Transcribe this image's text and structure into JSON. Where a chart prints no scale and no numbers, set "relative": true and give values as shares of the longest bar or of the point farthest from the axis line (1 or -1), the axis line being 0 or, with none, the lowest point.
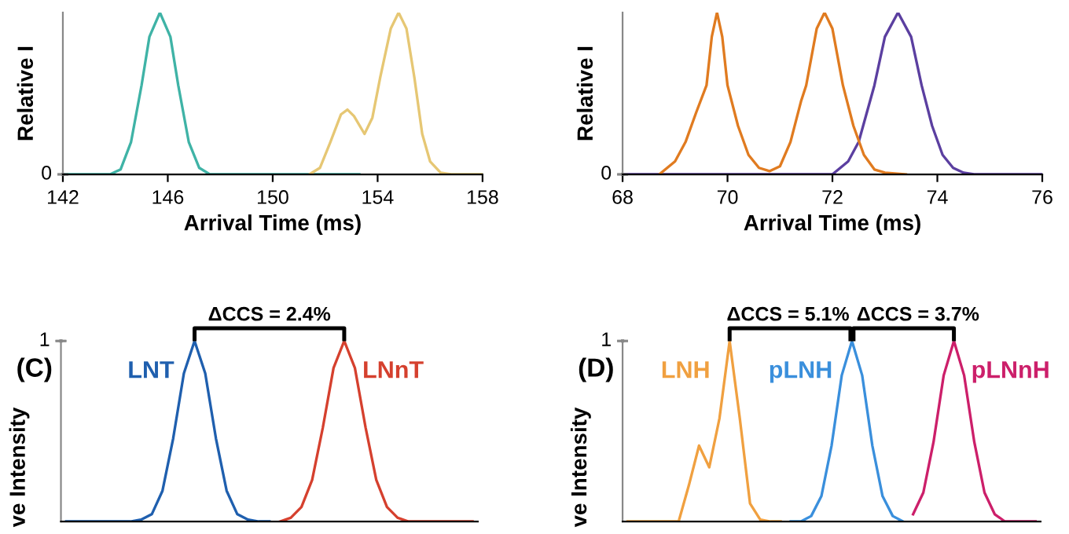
{
  "chart_data": [
    {
      "type": "line",
      "xlabel": "Arrival Time (ms)",
      "ylabel": "Relative I",
      "xlim": [
        142,
        158
      ],
      "xticks": [
        142,
        146,
        150,
        154,
        158
      ],
      "relative": true,
      "annotations": [
        "0"
      ],
      "grid": false,
      "legend": false,
      "series": [
        {
          "color": "#3fb3a6",
          "x": [
            142,
            143.8,
            144.2,
            144.6,
            145.0,
            145.3,
            145.7,
            146.1,
            146.4,
            146.8,
            147.2,
            147.6,
            153.3
          ],
          "values": [
            0,
            0,
            0.03,
            0.2,
            0.55,
            0.85,
            1,
            0.85,
            0.55,
            0.2,
            0.04,
            0,
            0
          ]
        },
        {
          "color": "#e6c774",
          "x": [
            151.4,
            151.8,
            152.2,
            152.6,
            152.85,
            153.1,
            153.5,
            153.8,
            154.1,
            154.5,
            154.8,
            155.1,
            155.4,
            155.7,
            156.0,
            156.4,
            156.8,
            158
          ],
          "values": [
            0,
            0.04,
            0.2,
            0.37,
            0.4,
            0.36,
            0.25,
            0.35,
            0.6,
            0.9,
            1,
            0.9,
            0.6,
            0.25,
            0.08,
            0.01,
            0,
            0
          ]
        }
      ]
    },
    {
      "type": "line",
      "xlabel": "Arrival Time (ms)",
      "ylabel": "Relative I",
      "xlim": [
        68,
        76
      ],
      "xticks": [
        68,
        70,
        72,
        74,
        76
      ],
      "relative": true,
      "annotations": [
        "0"
      ],
      "grid": false,
      "legend": false,
      "series": [
        {
          "color": "#5b3fa0",
          "x": [
            68,
            72.0,
            72.3,
            72.5,
            72.8,
            73.0,
            73.25,
            73.5,
            73.7,
            73.9,
            74.1,
            74.3,
            74.5,
            74.7,
            76
          ],
          "values": [
            0,
            0,
            0.08,
            0.2,
            0.55,
            0.85,
            1,
            0.85,
            0.55,
            0.3,
            0.12,
            0.04,
            0.01,
            0,
            0
          ]
        },
        {
          "color": "#e07b20",
          "x": [
            68.7,
            69.0,
            69.2,
            69.4,
            69.6,
            69.7,
            69.8,
            69.9,
            70.0,
            70.2,
            70.4,
            70.6,
            70.8,
            71.0,
            71.2,
            71.4,
            71.5,
            71.7,
            71.85,
            72.0,
            72.2,
            72.4,
            72.6,
            72.8,
            73.0,
            73.4
          ],
          "values": [
            0,
            0.08,
            0.2,
            0.38,
            0.55,
            0.85,
            1,
            0.85,
            0.55,
            0.3,
            0.12,
            0.04,
            0.02,
            0.05,
            0.2,
            0.45,
            0.55,
            0.9,
            1,
            0.9,
            0.55,
            0.3,
            0.12,
            0.03,
            0.01,
            0
          ]
        }
      ]
    },
    {
      "type": "line",
      "title": "(C)",
      "ylabel": "ve Intensity",
      "relative": true,
      "grid": false,
      "legend": false,
      "annotations": [
        "1",
        "ΔCCS = 2.4%"
      ],
      "categories": [
        null,
        null,
        null,
        null,
        null,
        null,
        null,
        null,
        null,
        null,
        null,
        null,
        null,
        null,
        null,
        null,
        null,
        null,
        null,
        null,
        null,
        null,
        null,
        null,
        null,
        null,
        null,
        null,
        null,
        null,
        null,
        null,
        null,
        null,
        null,
        null,
        null,
        null,
        null
      ],
      "series": [
        {
          "name": "LNT",
          "color": "#1f5fae",
          "values": [
            0,
            0,
            0,
            0,
            0,
            0,
            0,
            0.01,
            0.04,
            0.17,
            0.46,
            0.82,
            1,
            0.82,
            0.46,
            0.17,
            0.04,
            0.01,
            0,
            0,
            null,
            null,
            null,
            null,
            null,
            null,
            null,
            null,
            null,
            null,
            null,
            null,
            null,
            null,
            null,
            null,
            null,
            null,
            null
          ]
        },
        {
          "name": "LNnT",
          "color": "#d5402e",
          "values": [
            null,
            null,
            null,
            null,
            null,
            null,
            null,
            null,
            null,
            null,
            null,
            null,
            null,
            null,
            null,
            null,
            null,
            null,
            null,
            null,
            0,
            0.02,
            0.08,
            0.23,
            0.52,
            0.85,
            1,
            0.85,
            0.52,
            0.23,
            0.08,
            0.02,
            0,
            0,
            0,
            0,
            0,
            0,
            0
          ]
        }
      ]
    },
    {
      "type": "line",
      "title": "(D)",
      "ylabel": "ve Intensity",
      "relative": true,
      "grid": false,
      "legend": false,
      "annotations": [
        "1",
        "ΔCCS = 5.1%",
        "ΔCCS = 3.7%"
      ],
      "categories": [
        null,
        null,
        null,
        null,
        null,
        null,
        null,
        null,
        null,
        null,
        null,
        null,
        null,
        null,
        null,
        null,
        null,
        null,
        null,
        null,
        null,
        null,
        null,
        null,
        null,
        null,
        null,
        null,
        null,
        null,
        null,
        null,
        null,
        null,
        null,
        null,
        null,
        null,
        null,
        null,
        null
      ],
      "series": [
        {
          "name": "LNH",
          "color": "#f0a040",
          "values": [
            0,
            0,
            0,
            0,
            0,
            0,
            0.2,
            0.42,
            0.3,
            0.57,
            1,
            0.57,
            0.1,
            0.01,
            0,
            0,
            null,
            null,
            null,
            null,
            null,
            null,
            null,
            null,
            null,
            null,
            null,
            null,
            null,
            null,
            null,
            null,
            null,
            null,
            null,
            null,
            null,
            null,
            null,
            null,
            null
          ]
        },
        {
          "name": "pLNH",
          "color": "#3a8fdc",
          "values": [
            null,
            null,
            null,
            null,
            null,
            null,
            null,
            null,
            null,
            null,
            null,
            null,
            null,
            null,
            null,
            null,
            0,
            0,
            0.03,
            0.14,
            0.42,
            0.81,
            1,
            0.81,
            0.42,
            0.14,
            0.03,
            0,
            null,
            null,
            null,
            null,
            null,
            null,
            null,
            null,
            null,
            null,
            null,
            null,
            null
          ]
        },
        {
          "name": "pLNnH",
          "color": "#cc1f6a",
          "values": [
            null,
            null,
            null,
            null,
            null,
            null,
            null,
            null,
            null,
            null,
            null,
            null,
            null,
            null,
            null,
            null,
            null,
            null,
            null,
            null,
            null,
            null,
            null,
            null,
            null,
            null,
            null,
            null,
            0.04,
            0.16,
            0.44,
            0.81,
            1,
            0.81,
            0.44,
            0.16,
            0.04,
            0,
            0,
            0,
            0
          ]
        }
      ]
    }
  ]
}
